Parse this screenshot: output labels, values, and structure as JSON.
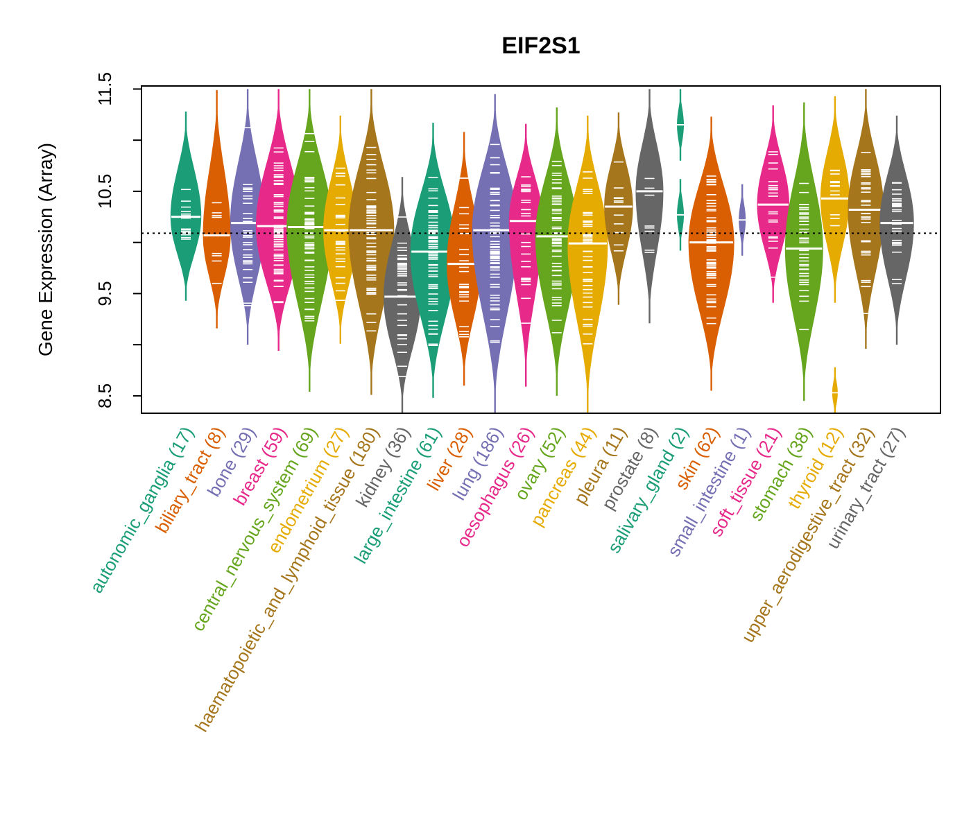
{
  "chart_data": {
    "type": "beanplot",
    "title": "EIF2S1",
    "xlabel": "",
    "ylabel": "Gene Expression (Array)",
    "ylim": [
      8.33,
      11.53
    ],
    "yticks": [
      8.5,
      9,
      9.5,
      10,
      10.5,
      11,
      11.5
    ],
    "ytick_labels": [
      "8.5",
      "",
      "9.5",
      "",
      "10.5",
      "",
      "11.5"
    ],
    "reference_line": {
      "value": 10.09,
      "style": "dotted"
    },
    "grid": false,
    "legend": "none",
    "palette": [
      "#1B9E77",
      "#D95F02",
      "#7570B3",
      "#E7298A",
      "#66A61E",
      "#E6AB02",
      "#A6761D",
      "#666666"
    ],
    "groups": [
      {
        "name": "autonomic_ganglia",
        "n": 17,
        "label": "autonomic_ganglia (17)",
        "median": 10.25,
        "min": 9.43,
        "max": 11.28
      },
      {
        "name": "biliary_tract",
        "n": 8,
        "label": "biliary_tract (8)",
        "median": 10.07,
        "min": 9.16,
        "max": 11.49
      },
      {
        "name": "bone",
        "n": 29,
        "label": "bone (29)",
        "median": 10.19,
        "min": 9.0,
        "max": 11.5
      },
      {
        "name": "breast",
        "n": 59,
        "label": "breast (59)",
        "median": 10.16,
        "min": 8.94,
        "max": 11.5
      },
      {
        "name": "central_nervous_system",
        "n": 69,
        "label": "central_nervous_system (69)",
        "median": 10.15,
        "min": 8.54,
        "max": 11.5
      },
      {
        "name": "endometrium",
        "n": 27,
        "label": "endometrium (27)",
        "median": 10.12,
        "min": 9.01,
        "max": 11.24
      },
      {
        "name": "haematopoietic_and_lymphoid_tissue",
        "n": 180,
        "label": "haematopoietic_and_lymphoid_tissue (180)",
        "median": 10.12,
        "min": 8.51,
        "max": 11.5
      },
      {
        "name": "kidney",
        "n": 36,
        "label": "kidney (36)",
        "median": 9.47,
        "min": 8.33,
        "max": 10.64
      },
      {
        "name": "large_intestine",
        "n": 61,
        "label": "large_intestine (61)",
        "median": 9.91,
        "min": 8.48,
        "max": 11.17
      },
      {
        "name": "liver",
        "n": 28,
        "label": "liver (28)",
        "median": 9.79,
        "min": 8.6,
        "max": 11.08
      },
      {
        "name": "lung",
        "n": 186,
        "label": "lung (186)",
        "median": 10.12,
        "min": 8.33,
        "max": 11.45
      },
      {
        "name": "oesophagus",
        "n": 26,
        "label": "oesophagus (26)",
        "median": 10.21,
        "min": 8.59,
        "max": 11.16
      },
      {
        "name": "ovary",
        "n": 52,
        "label": "ovary (52)",
        "median": 10.06,
        "min": 8.5,
        "max": 11.32
      },
      {
        "name": "pancreas",
        "n": 44,
        "label": "pancreas (44)",
        "median": 9.99,
        "min": 8.33,
        "max": 11.24
      },
      {
        "name": "pleura",
        "n": 11,
        "label": "pleura (11)",
        "median": 10.35,
        "min": 9.39,
        "max": 11.27
      },
      {
        "name": "prostate",
        "n": 8,
        "label": "prostate (8)",
        "median": 10.5,
        "min": 9.21,
        "max": 11.5
      },
      {
        "name": "salivary_gland",
        "n": 2,
        "label": "salivary_gland (2)",
        "values": [
          11.15,
          10.27
        ],
        "median": 10.71,
        "min": 9.96,
        "max": 11.5
      },
      {
        "name": "skin",
        "n": 62,
        "label": "skin (62)",
        "median": 10.0,
        "min": 8.55,
        "max": 11.23
      },
      {
        "name": "small_intestine",
        "n": 1,
        "label": "small_intestine (1)",
        "values": [
          10.22
        ],
        "median": 10.22,
        "min": 9.85,
        "max": 10.6
      },
      {
        "name": "soft_tissue",
        "n": 21,
        "label": "soft_tissue (21)",
        "median": 10.37,
        "min": 9.41,
        "max": 11.34
      },
      {
        "name": "stomach",
        "n": 38,
        "label": "stomach (38)",
        "median": 9.94,
        "min": 8.45,
        "max": 11.37
      },
      {
        "name": "thyroid",
        "n": 12,
        "label": "thyroid (12)",
        "median": 10.43,
        "min": 9.41,
        "max": 11.43,
        "outlier": 8.53
      },
      {
        "name": "upper_aerodigestive_tract",
        "n": 32,
        "label": "upper_aerodigestive_tract (32)",
        "median": 10.32,
        "min": 8.96,
        "max": 11.5
      },
      {
        "name": "urinary_tract",
        "n": 27,
        "label": "urinary_tract (27)",
        "median": 10.19,
        "min": 9.0,
        "max": 11.24
      }
    ]
  }
}
